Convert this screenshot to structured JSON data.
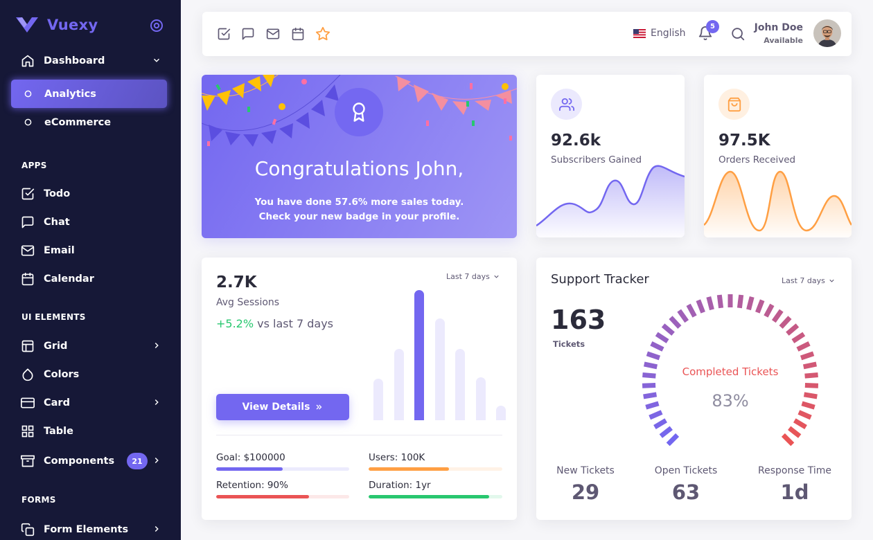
{
  "brand": {
    "name": "Vuexy"
  },
  "sidebar": {
    "dashboard": "Dashboard",
    "analytics": "Analytics",
    "ecommerce": "eCommerce",
    "sections": {
      "apps": "APPS",
      "ui": "UI ELEMENTS",
      "forms": "FORMS"
    },
    "todo": "Todo",
    "chat": "Chat",
    "email": "Email",
    "calendar": "Calendar",
    "grid": "Grid",
    "colors": "Colors",
    "card": "Card",
    "table": "Table",
    "components": "Components",
    "components_badge": "21",
    "form_elements": "Form Elements"
  },
  "navbar": {
    "language": "English",
    "notifications": "5",
    "user_name": "John Doe",
    "user_status": "Available",
    "bookmarks": [
      "check-square-icon",
      "message-square-icon",
      "mail-icon",
      "calendar-icon",
      "star-icon"
    ]
  },
  "congrats": {
    "title": "Congratulations John,",
    "line1_pre": "You have done ",
    "line1_pct": "57.6%",
    "line1_post": " more sales today.",
    "line2": "Check your new badge in your profile."
  },
  "subscribers": {
    "value": "92.6k",
    "label": "Subscribers Gained",
    "color": "#7367f0"
  },
  "orders": {
    "value": "97.5K",
    "label": "Orders Received",
    "color": "#ff9f43"
  },
  "sessions": {
    "value": "2.7K",
    "label": "Avg Sessions",
    "change": "+5.2%",
    "change_suffix": " vs last 7 days",
    "period": "Last 7 days",
    "button": "View Details",
    "bars": [
      0.32,
      0.55,
      1.0,
      0.78,
      0.55,
      0.33,
      0.11
    ],
    "highlight_index": 2,
    "metrics": [
      {
        "label": "Goal: $100000",
        "fill": 0.5,
        "color": "#7367f0"
      },
      {
        "label": "Users: 100K",
        "fill": 0.6,
        "color": "#ff9f43"
      },
      {
        "label": "Retention: 90%",
        "fill": 0.7,
        "color": "#ea5455"
      },
      {
        "label": "Duration: 1yr",
        "fill": 0.9,
        "color": "#28c76f"
      }
    ]
  },
  "support": {
    "title": "Support Tracker",
    "period": "Last 7 days",
    "tickets_value": "163",
    "tickets_label": "Tickets",
    "gauge_label": "Completed Tickets",
    "gauge_value": "83%",
    "stats": [
      {
        "label": "New Tickets",
        "value": "29"
      },
      {
        "label": "Open Tickets",
        "value": "63"
      },
      {
        "label": "Response Time",
        "value": "1d"
      }
    ]
  }
}
